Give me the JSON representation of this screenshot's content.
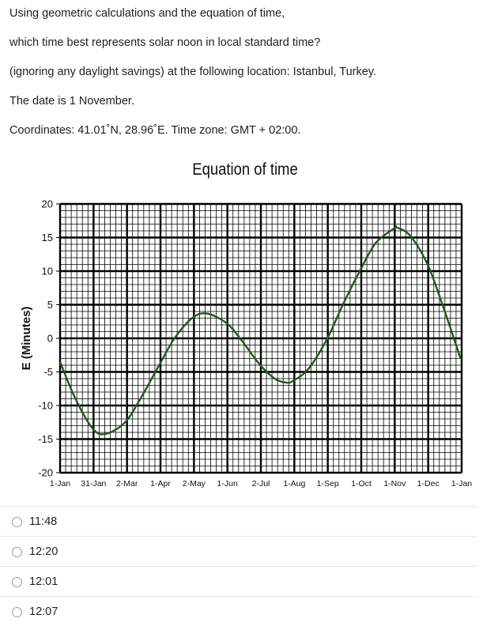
{
  "question": {
    "lines": [
      "Using geometric calculations and the equation of time,",
      "which time best represents solar noon in local standard time?",
      "(ignoring any daylight savings) at the following location: Istanbul, Turkey.",
      "The date is 1 November.",
      "Coordinates: 41.01˚N, 28.96˚E. Time zone: GMT + 02:00."
    ]
  },
  "chart_data": {
    "type": "line",
    "title": "Equation of time",
    "ylabel": "E (Minutes)",
    "xlabel": "",
    "x_ticks": [
      "1-Jan",
      "31-Jan",
      "2-Mar",
      "1-Apr",
      "2-May",
      "1-Jun",
      "2-Jul",
      "1-Aug",
      "1-Sep",
      "1-Oct",
      "1-Nov",
      "1-Dec",
      "1-Jan"
    ],
    "y_ticks": [
      "20",
      "15",
      "10",
      "5",
      "0",
      "-5",
      "-10",
      "-15",
      "-20"
    ],
    "ylim": [
      -20,
      20
    ],
    "grid": true,
    "series": [
      {
        "color": "#1f5a1f",
        "x": [
          "1-Jan",
          "15-Jan",
          "31-Jan",
          "12-Feb",
          "1-Mar",
          "15-Mar",
          "1-Apr",
          "15-Apr",
          "1-May",
          "14-May",
          "1-Jun",
          "15-Jun",
          "1-Jul",
          "15-Jul",
          "26-Jul",
          "1-Aug",
          "15-Aug",
          "1-Sep",
          "15-Sep",
          "1-Oct",
          "15-Oct",
          "1-Nov",
          "3-Nov",
          "15-Nov",
          "1-Dec",
          "15-Dec",
          "31-Dec"
        ],
        "y": [
          -3.5,
          -9.0,
          -13.5,
          -14.2,
          -12.5,
          -9.0,
          -4.0,
          0.0,
          3.0,
          3.7,
          2.3,
          -0.3,
          -3.8,
          -6.0,
          -6.6,
          -6.3,
          -4.5,
          0.0,
          5.0,
          10.2,
          14.2,
          16.4,
          16.5,
          15.3,
          11.0,
          4.8,
          -3.0
        ]
      }
    ]
  },
  "options": [
    {
      "label": "11:48"
    },
    {
      "label": "12:20"
    },
    {
      "label": "12:01"
    },
    {
      "label": "12:07"
    }
  ]
}
